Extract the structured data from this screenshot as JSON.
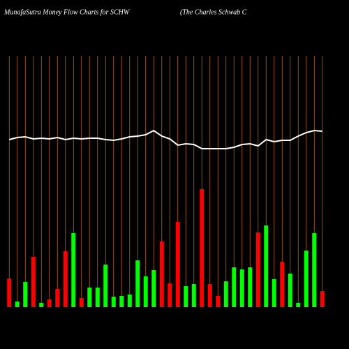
{
  "chart_data": {
    "type": "bar",
    "title": "MunafaSutra  Money Flow  Charts for SCHW",
    "subtitle": "(The   Charles Schwab C",
    "categories": [
      null,
      null,
      null,
      null,
      null,
      null,
      null,
      null,
      null,
      null,
      null,
      null,
      null,
      null,
      null,
      null,
      null,
      null,
      null,
      null,
      null,
      null,
      null,
      null,
      null,
      null,
      null,
      null,
      null,
      null,
      null,
      null,
      null,
      null,
      null,
      null,
      null,
      null,
      null,
      null
    ],
    "values": [
      41,
      8,
      36,
      72,
      6,
      11,
      26,
      80,
      106,
      13,
      28,
      28,
      61,
      15,
      16,
      18,
      67,
      44,
      53,
      94,
      34,
      122,
      30,
      33,
      169,
      33,
      16,
      37,
      57,
      54,
      57,
      107,
      117,
      40,
      65,
      48,
      6,
      81,
      106,
      23
    ],
    "bar_colors": [
      "#ff0000",
      "#00ff00",
      "#00ff00",
      "#ff0000",
      "#00ff00",
      "#ff0000",
      "#ff0000",
      "#ff0000",
      "#00ff00",
      "#ff0000",
      "#00ff00",
      "#00ff00",
      "#00ff00",
      "#00ff00",
      "#00ff00",
      "#00ff00",
      "#00ff00",
      "#00ff00",
      "#00ff00",
      "#ff0000",
      "#ff0000",
      "#ff0000",
      "#00ff00",
      "#00ff00",
      "#ff0000",
      "#ff0000",
      "#ff0000",
      "#00ff00",
      "#00ff00",
      "#00ff00",
      "#00ff00",
      "#ff0000",
      "#00ff00",
      "#00ff00",
      "#ff0000",
      "#00ff00",
      "#00ff00",
      "#00ff00",
      "#00ff00",
      "#ff0000"
    ],
    "line": {
      "color": "#ffffff",
      "values": [
        240,
        243,
        244,
        241,
        242,
        241,
        243,
        240,
        242,
        241,
        242,
        242,
        240,
        239,
        241,
        244,
        245,
        247,
        253,
        245,
        241,
        232,
        234,
        233,
        227,
        227,
        227,
        227,
        229,
        233,
        234,
        231,
        240,
        237,
        239,
        239,
        245,
        250,
        253,
        252
      ]
    },
    "ylim": [
      0,
      440
    ],
    "grid_color": "#b8650f"
  }
}
